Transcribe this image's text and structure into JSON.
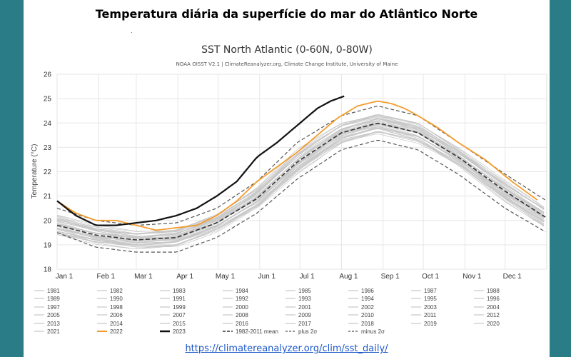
{
  "page": {
    "heading": "Temperatura diária da superfície do mar do Atlântico Norte",
    "stray_mark": "·",
    "source_url": "https://climatereanalyzer.org/clim/sst_daily/"
  },
  "colors": {
    "frame": "#2a7c86",
    "y2022": "#f39c2e",
    "y2023": "#111111",
    "mean": "#333333",
    "band": "#555555",
    "years": "#c6c6c6"
  },
  "chart_data": {
    "type": "line",
    "title": "SST North Atlantic (0-60N, 0-80W)",
    "subtitle": "NOAA OISST V2.1 | ClimateReanalyzer.org, Climate Change Institute, University of Maine",
    "xlabel": "",
    "ylabel": "Temperature (°C)",
    "ylim": [
      18,
      26
    ],
    "yticks": [
      18,
      19,
      20,
      21,
      22,
      23,
      24,
      25,
      26
    ],
    "x_unit": "day of year",
    "xlim": [
      1,
      366
    ],
    "month_ticks": [
      {
        "label": "Jan 1",
        "day": 1
      },
      {
        "label": "Feb 1",
        "day": 32
      },
      {
        "label": "Mar 1",
        "day": 60
      },
      {
        "label": "Apr 1",
        "day": 91
      },
      {
        "label": "May 1",
        "day": 121
      },
      {
        "label": "Jun 1",
        "day": 152
      },
      {
        "label": "Jul 1",
        "day": 182
      },
      {
        "label": "Aug 1",
        "day": 213
      },
      {
        "label": "Sep 1",
        "day": 244
      },
      {
        "label": "Oct 1",
        "day": 274
      },
      {
        "label": "Nov 1",
        "day": 305
      },
      {
        "label": "Dec 1",
        "day": 335
      }
    ],
    "grid": true,
    "legend_position": "bottom",
    "climatology": {
      "mean": {
        "days": [
          1,
          30,
          60,
          90,
          120,
          150,
          180,
          213,
          240,
          270,
          300,
          335,
          366
        ],
        "values": [
          19.8,
          19.4,
          19.2,
          19.3,
          19.9,
          20.9,
          22.4,
          23.6,
          24.0,
          23.6,
          22.6,
          21.2,
          20.1
        ]
      },
      "plus_2sigma": {
        "days": [
          1,
          30,
          60,
          90,
          120,
          150,
          180,
          213,
          240,
          270,
          300,
          335,
          366
        ],
        "values": [
          20.5,
          20.0,
          19.8,
          19.9,
          20.5,
          21.6,
          23.2,
          24.3,
          24.7,
          24.3,
          23.2,
          21.9,
          20.8
        ]
      },
      "minus_2sigma": {
        "days": [
          1,
          30,
          60,
          90,
          120,
          150,
          180,
          213,
          240,
          270,
          300,
          335,
          366
        ],
        "values": [
          19.5,
          18.9,
          18.7,
          18.7,
          19.3,
          20.3,
          21.7,
          22.9,
          23.3,
          22.9,
          21.9,
          20.5,
          19.5
        ]
      }
    },
    "series": [
      {
        "name": "2022",
        "days": [
          1,
          15,
          30,
          45,
          60,
          75,
          90,
          105,
          120,
          135,
          150,
          165,
          180,
          195,
          210,
          225,
          240,
          250,
          260,
          270,
          285,
          300,
          320,
          340,
          360
        ],
        "values": [
          20.8,
          20.3,
          20.0,
          20.0,
          19.8,
          19.6,
          19.7,
          19.8,
          20.2,
          20.8,
          21.6,
          22.2,
          22.8,
          23.5,
          24.2,
          24.7,
          24.9,
          24.8,
          24.6,
          24.3,
          23.8,
          23.2,
          22.5,
          21.6,
          20.8
        ]
      },
      {
        "name": "2023",
        "days": [
          1,
          15,
          30,
          45,
          60,
          75,
          90,
          105,
          120,
          135,
          150,
          165,
          180,
          195,
          205,
          210,
          215
        ],
        "values": [
          20.8,
          20.2,
          19.8,
          19.8,
          19.9,
          20.0,
          20.2,
          20.5,
          21.0,
          21.6,
          22.6,
          23.2,
          23.9,
          24.6,
          24.9,
          25.0,
          25.1
        ]
      }
    ],
    "legend": [
      "1981",
      "1982",
      "1983",
      "1984",
      "1985",
      "1986",
      "1987",
      "1988",
      "1989",
      "1990",
      "1991",
      "1992",
      "1993",
      "1994",
      "1995",
      "1996",
      "1997",
      "1998",
      "1999",
      "2000",
      "2001",
      "2002",
      "2003",
      "2004",
      "2005",
      "2006",
      "2007",
      "2008",
      "2009",
      "2010",
      "2011",
      "2012",
      "2013",
      "2014",
      "2015",
      "2016",
      "2017",
      "2018",
      "2019",
      "2020",
      "2021",
      "2022",
      "2023",
      "1982-2011 mean",
      "plus 2σ",
      "minus 2σ"
    ]
  }
}
